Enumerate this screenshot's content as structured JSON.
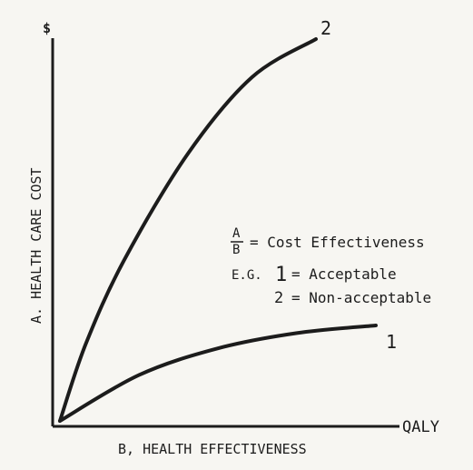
{
  "colors": {
    "ink": "#1c1c1c",
    "paper": "#f7f6f2"
  },
  "chart_data": {
    "type": "line",
    "y_unit_label": "$",
    "ylabel": "A.  HEALTH CARE COST",
    "xlabel": "B,  HEALTH EFFECTIVENESS",
    "x_axis_end_label": "QALY",
    "grid": false,
    "series": [
      {
        "name": "2",
        "shape": "steep, concave",
        "x": [
          0,
          0.1,
          0.25,
          0.5,
          0.75,
          1.0
        ],
        "y": [
          0,
          0.2,
          0.42,
          0.7,
          0.9,
          1.0
        ]
      },
      {
        "name": "1",
        "shape": "shallow, concave",
        "x": [
          0,
          0.25,
          0.5,
          0.75,
          1.0
        ],
        "y": [
          0,
          0.12,
          0.19,
          0.23,
          0.25
        ]
      }
    ],
    "annotations": {
      "ratio_numerator": "A",
      "ratio_denominator": "B",
      "definition": "= Cost Effectiveness",
      "example_prefix": "E.G.",
      "example_1_num": "1",
      "example_1_text": "= Acceptable",
      "example_2_num": "2",
      "example_2_text": "= Non-acceptable"
    }
  }
}
